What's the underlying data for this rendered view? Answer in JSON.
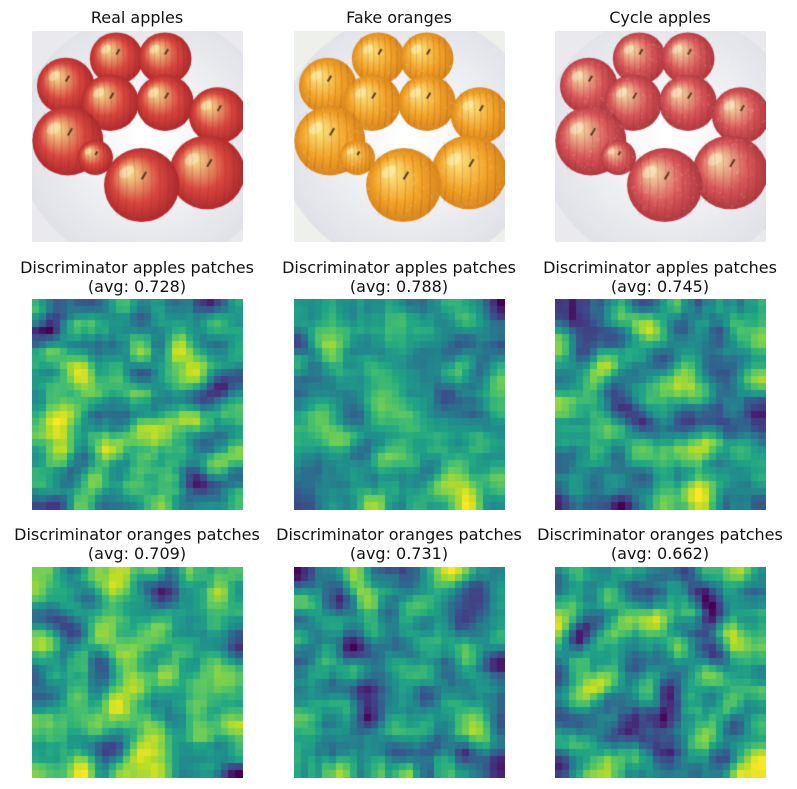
{
  "figure": {
    "row1": [
      {
        "title": "Real apples",
        "kind": "photo",
        "tint": "real"
      },
      {
        "title": "Fake oranges",
        "kind": "photo",
        "tint": "orange"
      },
      {
        "title": "Cycle apples",
        "kind": "photo",
        "tint": "cycle"
      }
    ],
    "row2": [
      {
        "title": "Discriminator apples patches",
        "avg": "(avg: 0.728)",
        "seed": 11
      },
      {
        "title": "Discriminator apples patches",
        "avg": "(avg: 0.788)",
        "seed": 23
      },
      {
        "title": "Discriminator apples patches",
        "avg": "(avg: 0.745)",
        "seed": 37
      }
    ],
    "row3": [
      {
        "title": "Discriminator oranges patches",
        "avg": "(avg: 0.709)",
        "seed": 41
      },
      {
        "title": "Discriminator oranges patches",
        "avg": "(avg: 0.731)",
        "seed": 59
      },
      {
        "title": "Discriminator oranges patches",
        "avg": "(avg: 0.662)",
        "seed": 73
      }
    ]
  },
  "colormap": "viridis"
}
